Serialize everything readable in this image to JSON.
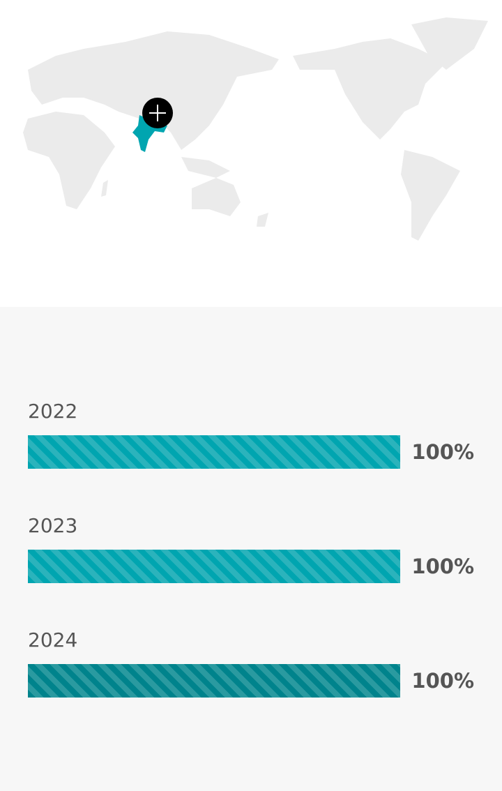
{
  "map": {
    "highlighted_country": "India",
    "highlight_color": "#00a5b0",
    "land_color": "#ebebeb",
    "marker_icon": "plus-icon"
  },
  "stats": [
    {
      "year": "2022",
      "label": "100%",
      "value": 100,
      "color": "#00a5b0",
      "stripe": "#2bb3bc"
    },
    {
      "year": "2023",
      "label": "100%",
      "value": 100,
      "color": "#00a5b0",
      "stripe": "#2bb3bc"
    },
    {
      "year": "2024",
      "label": "100%",
      "value": 100,
      "color": "#00838c",
      "stripe": "#2a9aa0"
    }
  ]
}
